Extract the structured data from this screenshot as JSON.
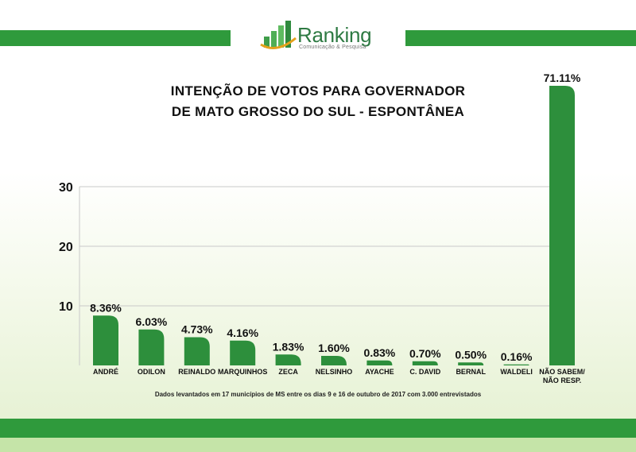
{
  "brand": {
    "name": "Ranking",
    "tagline": "Comunicação & Pesquisa",
    "colors": {
      "green": "#2f9a3c",
      "bar": "#2d8f3c",
      "light_green": "#c5e4a8"
    }
  },
  "footnote": "Dados levantados em 17 municípios de MS entre os dias 9 e 16 de outubro de 2017 com 3.000 entrevistados",
  "chart_data": {
    "type": "bar",
    "title": "INTENÇÃO DE VOTOS PARA GOVERNADOR DE MATO GROSSO DO SUL - ESPONTÂNEA",
    "title_lines": [
      "INTENÇÃO DE VOTOS PARA GOVERNADOR",
      "DE MATO GROSSO DO SUL - ESPONTÂNEA"
    ],
    "xlabel": "",
    "ylabel": "",
    "ylim": [
      0,
      30
    ],
    "yticks": [
      10,
      20,
      30
    ],
    "grid": true,
    "categories": [
      "ANDRÉ",
      "ODILON",
      "REINALDO",
      "MARQUINHOS",
      "ZECA",
      "NELSINHO",
      "AYACHE",
      "C. DAVID",
      "BERNAL",
      "WALDELI",
      "NÃO SABEM/ NÃO RESP."
    ],
    "category_lines": [
      [
        "ANDRÉ"
      ],
      [
        "ODILON"
      ],
      [
        "REINALDO"
      ],
      [
        "MARQUINHOS"
      ],
      [
        "ZECA"
      ],
      [
        "NELSINHO"
      ],
      [
        "AYACHE"
      ],
      [
        "C. DAVID"
      ],
      [
        "BERNAL"
      ],
      [
        "WALDELI"
      ],
      [
        "NÃO SABEM/",
        "NÃO RESP."
      ]
    ],
    "values": [
      8.36,
      6.03,
      4.73,
      4.16,
      1.83,
      1.6,
      0.83,
      0.7,
      0.5,
      0.16,
      71.11
    ],
    "value_labels": [
      "8.36%",
      "6.03%",
      "4.73%",
      "4.16%",
      "1.83%",
      "1.60%",
      "0.83%",
      "0.70%",
      "0.50%",
      "0.16%",
      "71.11%"
    ]
  }
}
